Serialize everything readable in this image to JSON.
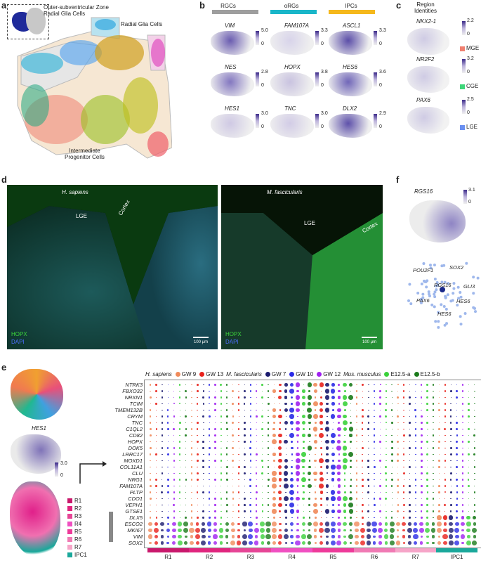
{
  "panel_labels": {
    "a": "a",
    "b": "b",
    "c": "c",
    "d": "d",
    "e": "e",
    "f": "f"
  },
  "panel_a": {
    "ovz": "Outer-subventricular Zone\nRadial Glia Cells",
    "rg": "Radial Glia Cells",
    "ipc": "Intermediate\nProgenitor Cells"
  },
  "panel_b": {
    "headers": [
      {
        "label": "RGCs",
        "color": "#9e9e9e"
      },
      {
        "label": "oRGs",
        "color": "#19b6c9"
      },
      {
        "label": "IPCs",
        "color": "#f5b81c"
      }
    ],
    "genes": [
      {
        "name": "VIM",
        "max": "5.0",
        "min": "0"
      },
      {
        "name": "FAM107A",
        "max": "3.3",
        "min": "0"
      },
      {
        "name": "ASCL1",
        "max": "3.3",
        "min": "0"
      },
      {
        "name": "NES",
        "max": "2.8",
        "min": "0"
      },
      {
        "name": "HOPX",
        "max": "3.8",
        "min": "0"
      },
      {
        "name": "HES6",
        "max": "3.6",
        "min": "0"
      },
      {
        "name": "HES1",
        "max": "3.0",
        "min": "0"
      },
      {
        "name": "TNC",
        "max": "3.0",
        "min": "0"
      },
      {
        "name": "DLX2",
        "max": "2.9",
        "min": "0"
      }
    ]
  },
  "panel_c": {
    "title": "Region\nIdentities",
    "genes": [
      {
        "name": "NKX2-1",
        "max": "2.2",
        "min": "0",
        "region": "MGE",
        "color": "#f08070"
      },
      {
        "name": "NR2F2",
        "max": "3.2",
        "min": "0",
        "region": "CGE",
        "color": "#3fd67a"
      },
      {
        "name": "PAX6",
        "max": "2.5",
        "min": "0",
        "region": "LGE",
        "color": "#6a8ff0"
      }
    ]
  },
  "panel_d": {
    "left": {
      "species": "H. sapiens",
      "lge": "LGE",
      "cortex": "Cortex",
      "hopx": "HOPX",
      "dapi": "DAPI",
      "scale": "100 μm"
    },
    "right": {
      "species": "M. fascicularis",
      "lge": "LGE",
      "cortex": "Cortex",
      "hopx": "HOPX",
      "dapi": "DAPI",
      "scale": "100 μm"
    }
  },
  "panel_f": {
    "gene": "RGS16",
    "max": "3.1",
    "min": "0",
    "network": [
      "POU2F1",
      "SOX2",
      "RGS16",
      "GLI3",
      "PAX6",
      "HES6",
      "HES6"
    ]
  },
  "panel_e": {
    "umap_gene": "HES1",
    "umap_max": "3.0",
    "umap_min": "0",
    "clusters": [
      {
        "name": "R1",
        "color": "#c9186c"
      },
      {
        "name": "R2",
        "color": "#e0257e"
      },
      {
        "name": "R3",
        "color": "#e64596"
      },
      {
        "name": "R4",
        "color": "#f04fc1"
      },
      {
        "name": "R5",
        "color": "#ee3a9a"
      },
      {
        "name": "R6",
        "color": "#f07ab4"
      },
      {
        "name": "R7",
        "color": "#f6a5c8"
      },
      {
        "name": "IPC1",
        "color": "#1aa89b"
      }
    ],
    "legend": {
      "h_sapiens": "H. sapiens",
      "hs_gw9": "GW 9",
      "hs_gw13": "GW 13",
      "m_fasc": "M. fascicularis",
      "mf_gw7": "GW 7",
      "mf_gw10": "GW 10",
      "mf_gw12": "GW 12",
      "mus": "Mus. musculus",
      "mm_a": "E12.5-a",
      "mm_b": "E12.5-b"
    },
    "legend_colors": [
      "#f08a5a",
      "#e8211b",
      "#1a1a6e",
      "#2a2ae6",
      "#a020f0",
      "#3bd13b",
      "#1a7a1a"
    ],
    "genes": [
      "NTRK3",
      "FBXO32",
      "NRXN1",
      "TCIM",
      "TMEM132B",
      "CRYM",
      "TNC",
      "C1QL2",
      "CD82",
      "HOPX",
      "DOK5",
      "LRRC17",
      "MOXD1",
      "COL11A1",
      "CLU",
      "NRG1",
      "FAM107A",
      "PLTP",
      "CDO1",
      "VEPH1",
      "GTSE1",
      "DLX5",
      "ESCO2",
      "MKI67",
      "VIM",
      "SOX2"
    ],
    "xlabels": [
      "R1",
      "R2",
      "R3",
      "R4",
      "R5",
      "R6",
      "R7",
      "IPC1"
    ]
  }
}
